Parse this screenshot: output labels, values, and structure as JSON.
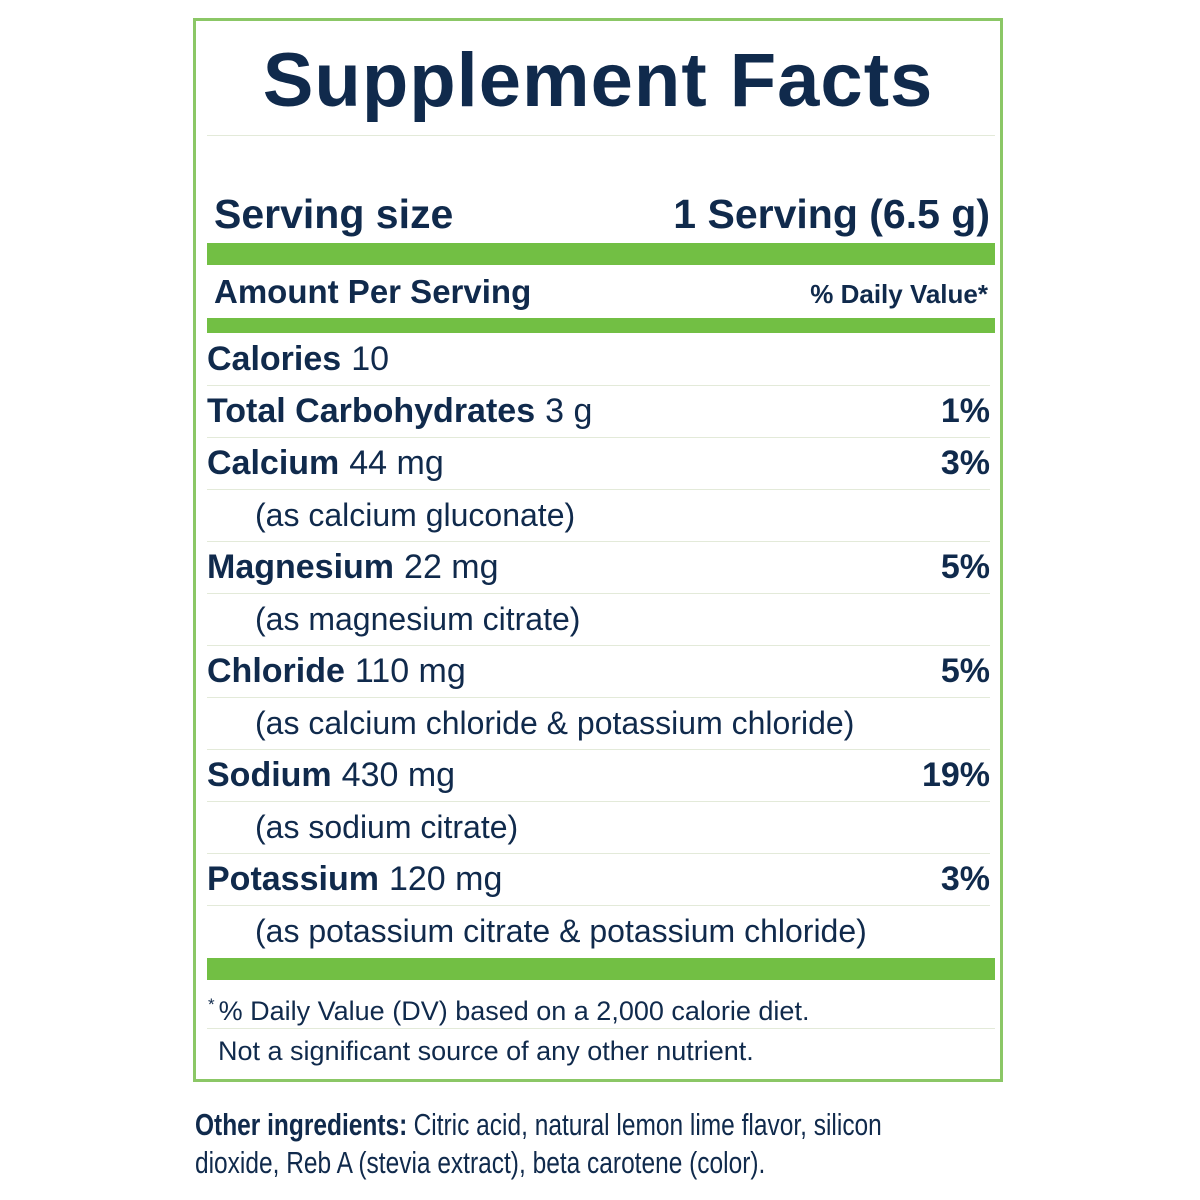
{
  "header": {
    "title": "Supplement Facts"
  },
  "serving": {
    "label": "Serving size",
    "value": "1 Serving (6.5 g)"
  },
  "columns": {
    "amount": "Amount Per Serving",
    "daily_value": "% Daily Value*"
  },
  "rows": [
    {
      "name": "Calories",
      "amount": "10"
    },
    {
      "name": "Total Carbohydrates",
      "amount": "3 g",
      "dv": "1%"
    },
    {
      "name": "Calcium",
      "amount": "44 mg",
      "dv": "3%",
      "source": "(as calcium gluconate)"
    },
    {
      "name": "Magnesium",
      "amount": "22 mg",
      "dv": "5%",
      "source": "(as magnesium citrate)"
    },
    {
      "name": "Chloride",
      "amount": "110 mg",
      "dv": "5%",
      "source": "(as calcium chloride & potassium chloride)"
    },
    {
      "name": "Sodium",
      "amount": "430 mg",
      "dv": "19%",
      "source": "(as sodium citrate)"
    },
    {
      "name": "Potassium",
      "amount": "120 mg",
      "dv": "3%",
      "source": "(as potassium citrate & potassium chloride)"
    }
  ],
  "footnotes": [
    {
      "mark": "*",
      "text": "% Daily Value (DV) based on a 2,000 calorie diet."
    },
    {
      "text": "Not a significant source of any other nutrient."
    }
  ],
  "other_ingredients": {
    "label": "Other ingredients:",
    "text": "Citric acid, natural lemon lime flavor, silicon dioxide, Reb A (stevia extract), beta carotene (color)."
  }
}
